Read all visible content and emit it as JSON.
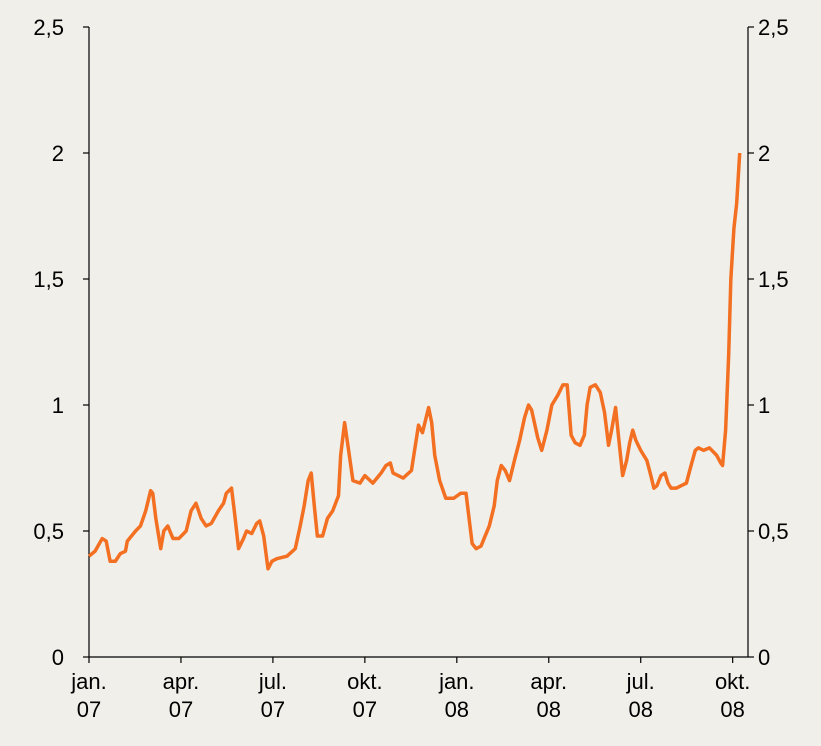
{
  "chart_data": {
    "type": "line",
    "xlim": [
      0,
      21.5
    ],
    "xticks": [
      {
        "value": 0,
        "label": "jan. 07"
      },
      {
        "value": 3,
        "label": "apr. 07"
      },
      {
        "value": 6,
        "label": "jul. 07"
      },
      {
        "value": 9,
        "label": "okt. 07"
      },
      {
        "value": 12,
        "label": "jan. 08"
      },
      {
        "value": 15,
        "label": "apr. 08"
      },
      {
        "value": 18,
        "label": "jul. 08"
      },
      {
        "value": 21,
        "label": "okt. 08"
      }
    ],
    "ylim": [
      0,
      2.5
    ],
    "yticks": [
      0,
      {
        "value": 0.5,
        "label": "0,5"
      },
      1,
      {
        "value": 1.5,
        "label": "1,5"
      },
      2,
      {
        "value": 2.5,
        "label": "2,5"
      }
    ],
    "y2lim": [
      0,
      2.5
    ],
    "y2ticks": [
      0,
      {
        "value": 0.5,
        "label": "0,5"
      },
      1,
      {
        "value": 1.5,
        "label": "1,5"
      },
      2,
      {
        "value": 2.5,
        "label": "2,5"
      }
    ],
    "grid": false,
    "series": [
      {
        "color": "#f36f21",
        "x": [
          0,
          0.2,
          0.43,
          0.56,
          0.69,
          0.86,
          1.02,
          1.19,
          1.25,
          1.52,
          1.68,
          1.85,
          2.01,
          2.08,
          2.18,
          2.34,
          2.44,
          2.57,
          2.74,
          2.93,
          3.17,
          3.33,
          3.49,
          3.66,
          3.82,
          3.99,
          4.22,
          4.39,
          4.48,
          4.65,
          4.75,
          4.88,
          5.04,
          5.14,
          5.31,
          5.47,
          5.57,
          5.7,
          5.84,
          5.97,
          6.13,
          6.46,
          6.73,
          6.89,
          7.02,
          7.15,
          7.25,
          7.35,
          7.45,
          7.62,
          7.78,
          7.95,
          8.14,
          8.21,
          8.34,
          8.47,
          8.61,
          8.84,
          9.0,
          9.26,
          9.53,
          9.69,
          9.83,
          9.92,
          10.25,
          10.52,
          10.75,
          10.88,
          11.08,
          11.18,
          11.28,
          11.44,
          11.64,
          11.9,
          12.13,
          12.3,
          12.4,
          12.5,
          12.63,
          12.79,
          12.89,
          13.06,
          13.22,
          13.32,
          13.45,
          13.58,
          13.72,
          13.88,
          14.05,
          14.21,
          14.34,
          14.44,
          14.64,
          14.77,
          14.94,
          15.1,
          15.3,
          15.46,
          15.6,
          15.73,
          15.86,
          16.02,
          16.16,
          16.25,
          16.35,
          16.52,
          16.68,
          16.82,
          16.95,
          17.05,
          17.18,
          17.28,
          17.41,
          17.54,
          17.64,
          17.74,
          17.84,
          18.0,
          18.2,
          18.33,
          18.43,
          18.53,
          18.66,
          18.79,
          18.89,
          18.99,
          19.16,
          19.32,
          19.49,
          19.62,
          19.78,
          19.88,
          20.05,
          20.24,
          20.48,
          20.61,
          20.67,
          20.77,
          20.87,
          20.94,
          21.04,
          21.13,
          21.23
        ],
        "values": [
          0.4,
          0.42,
          0.47,
          0.46,
          0.38,
          0.38,
          0.41,
          0.42,
          0.46,
          0.5,
          0.52,
          0.58,
          0.66,
          0.65,
          0.55,
          0.43,
          0.5,
          0.52,
          0.47,
          0.47,
          0.5,
          0.58,
          0.61,
          0.55,
          0.52,
          0.53,
          0.58,
          0.61,
          0.65,
          0.67,
          0.57,
          0.43,
          0.47,
          0.5,
          0.49,
          0.53,
          0.54,
          0.48,
          0.35,
          0.38,
          0.39,
          0.4,
          0.43,
          0.52,
          0.6,
          0.7,
          0.73,
          0.6,
          0.48,
          0.48,
          0.55,
          0.58,
          0.64,
          0.8,
          0.93,
          0.82,
          0.7,
          0.69,
          0.72,
          0.69,
          0.73,
          0.76,
          0.77,
          0.73,
          0.71,
          0.74,
          0.92,
          0.89,
          0.99,
          0.93,
          0.8,
          0.7,
          0.63,
          0.63,
          0.65,
          0.65,
          0.55,
          0.45,
          0.43,
          0.44,
          0.47,
          0.52,
          0.6,
          0.7,
          0.76,
          0.74,
          0.7,
          0.78,
          0.86,
          0.95,
          1.0,
          0.98,
          0.87,
          0.82,
          0.9,
          1.0,
          1.04,
          1.08,
          1.08,
          0.88,
          0.85,
          0.84,
          0.88,
          1.0,
          1.07,
          1.08,
          1.05,
          0.97,
          0.84,
          0.9,
          0.99,
          0.87,
          0.72,
          0.78,
          0.85,
          0.9,
          0.86,
          0.82,
          0.78,
          0.72,
          0.67,
          0.68,
          0.72,
          0.73,
          0.69,
          0.67,
          0.67,
          0.68,
          0.69,
          0.75,
          0.82,
          0.83,
          0.82,
          0.83,
          0.8,
          0.77,
          0.76,
          0.9,
          1.2,
          1.5,
          1.7,
          1.8,
          2.0
        ]
      }
    ]
  }
}
